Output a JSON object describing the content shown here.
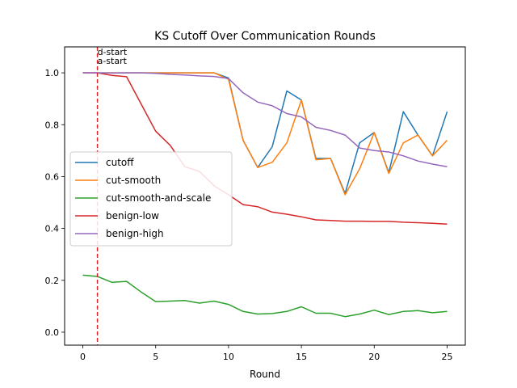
{
  "chart_data": {
    "type": "line",
    "title": "KS Cutoff Over Communication Rounds",
    "xlabel": "Round",
    "ylabel": "",
    "xlim": [
      -1.25,
      26.25
    ],
    "ylim": [
      -0.05,
      1.1
    ],
    "xticks": [
      0,
      5,
      10,
      15,
      20,
      25
    ],
    "yticks": [
      0.0,
      0.2,
      0.4,
      0.6,
      0.8,
      1.0
    ],
    "ytick_labels": [
      "0.0",
      "0.2",
      "0.4",
      "0.6",
      "0.8",
      "1.0"
    ],
    "grid": false,
    "legend_position": "center-left",
    "x": [
      0,
      1,
      2,
      3,
      4,
      5,
      6,
      7,
      8,
      9,
      10,
      11,
      12,
      13,
      14,
      15,
      16,
      17,
      18,
      19,
      20,
      21,
      22,
      23,
      24,
      25
    ],
    "series": [
      {
        "name": "cutoff",
        "color": "#1f77b4",
        "values": [
          1.0,
          1.0,
          1.0,
          1.0,
          1.0,
          1.0,
          1.0,
          1.0,
          1.0,
          1.0,
          0.98,
          0.74,
          0.635,
          0.715,
          0.93,
          0.895,
          0.67,
          0.67,
          0.535,
          0.73,
          0.77,
          0.615,
          0.85,
          0.76,
          0.68,
          0.85
        ]
      },
      {
        "name": "cut-smooth",
        "color": "#ff7f0e",
        "values": [
          1.0,
          1.0,
          1.0,
          1.0,
          1.0,
          1.0,
          1.0,
          1.0,
          1.0,
          1.0,
          0.975,
          0.74,
          0.635,
          0.655,
          0.73,
          0.895,
          0.665,
          0.67,
          0.53,
          0.63,
          0.77,
          0.612,
          0.73,
          0.76,
          0.68,
          0.74
        ]
      },
      {
        "name": "cut-smooth-and-scale",
        "color": "#2ca02c",
        "values": [
          0.22,
          0.215,
          0.192,
          0.196,
          0.155,
          0.118,
          0.12,
          0.122,
          0.112,
          0.12,
          0.107,
          0.08,
          0.07,
          0.072,
          0.08,
          0.098,
          0.073,
          0.073,
          0.06,
          0.07,
          0.085,
          0.068,
          0.08,
          0.083,
          0.075,
          0.08
        ]
      },
      {
        "name": "benign-low",
        "color": "#d62728",
        "values": [
          1.0,
          1.0,
          0.99,
          0.985,
          0.88,
          0.775,
          0.72,
          0.638,
          0.62,
          0.565,
          0.53,
          0.492,
          0.484,
          0.463,
          0.455,
          0.445,
          0.433,
          0.431,
          0.428,
          0.428,
          0.427,
          0.427,
          0.424,
          0.422,
          0.42,
          0.417
        ]
      },
      {
        "name": "benign-high",
        "color": "#9467bd",
        "values": [
          1.0,
          1.0,
          0.999,
          1.0,
          1.0,
          0.998,
          0.994,
          0.992,
          0.988,
          0.986,
          0.978,
          0.923,
          0.887,
          0.873,
          0.843,
          0.83,
          0.79,
          0.778,
          0.76,
          0.71,
          0.7,
          0.695,
          0.68,
          0.66,
          0.648,
          0.638
        ]
      }
    ],
    "markers": [
      {
        "x": 1,
        "color": "#d62728",
        "style": "dashed",
        "labels": [
          "d-start",
          "a-start"
        ]
      }
    ]
  }
}
